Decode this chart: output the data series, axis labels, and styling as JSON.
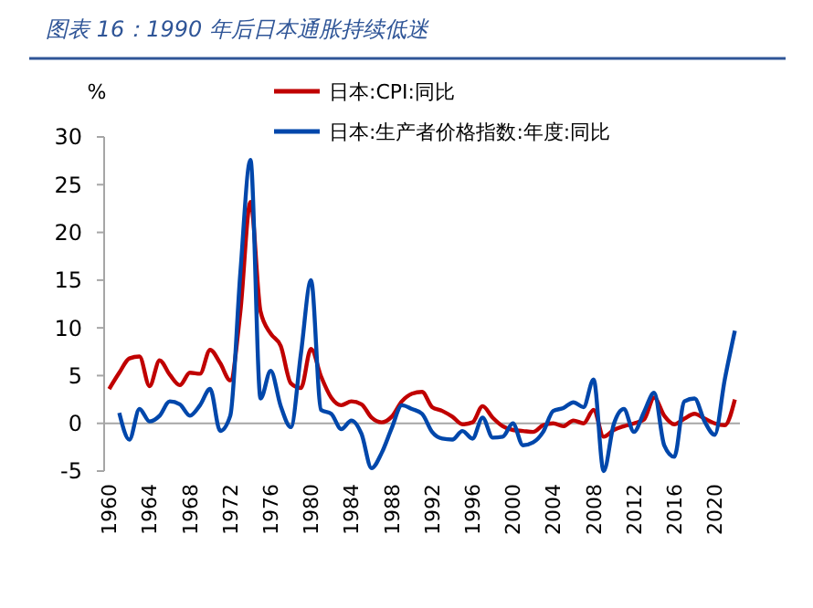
{
  "chart_data": {
    "type": "line",
    "title": "图表 16：1990 年后日本通胀持续低迷",
    "ylabel": "%",
    "x": [
      1960,
      1961,
      1962,
      1963,
      1964,
      1965,
      1966,
      1967,
      1968,
      1969,
      1970,
      1971,
      1972,
      1973,
      1974,
      1975,
      1976,
      1977,
      1978,
      1979,
      1980,
      1981,
      1982,
      1983,
      1984,
      1985,
      1986,
      1987,
      1988,
      1989,
      1990,
      1991,
      1992,
      1993,
      1994,
      1995,
      1996,
      1997,
      1998,
      1999,
      2000,
      2001,
      2002,
      2003,
      2004,
      2005,
      2006,
      2007,
      2008,
      2009,
      2010,
      2011,
      2012,
      2013,
      2014,
      2015,
      2016,
      2017,
      2018,
      2019,
      2020,
      2021,
      2022
    ],
    "series": [
      {
        "name": "日本:CPI:同比",
        "color": "#c00000",
        "values": [
          3.6,
          5.3,
          6.8,
          7.0,
          3.9,
          6.6,
          5.1,
          4.0,
          5.3,
          5.2,
          7.7,
          6.3,
          4.5,
          11.7,
          23.2,
          11.7,
          9.4,
          8.1,
          4.2,
          3.7,
          7.8,
          4.9,
          2.7,
          1.9,
          2.3,
          2.0,
          0.6,
          0.1,
          0.7,
          2.3,
          3.1,
          3.3,
          1.7,
          1.3,
          0.7,
          -0.1,
          0.1,
          1.8,
          0.6,
          -0.3,
          -0.7,
          -0.8,
          -0.9,
          -0.2,
          0.0,
          -0.3,
          0.3,
          0.0,
          1.4,
          -1.4,
          -0.7,
          -0.3,
          0.0,
          0.4,
          2.7,
          0.8,
          -0.1,
          0.5,
          1.0,
          0.5,
          0.0,
          -0.2,
          2.5
        ]
      },
      {
        "name": "日本:生产者价格指数:年度:同比",
        "color": "#0047ab",
        "values": [
          null,
          1.1,
          -1.7,
          1.5,
          0.2,
          0.8,
          2.3,
          2.0,
          0.8,
          1.9,
          3.6,
          -0.8,
          0.8,
          15.8,
          27.6,
          2.6,
          5.5,
          1.8,
          -0.4,
          7.3,
          15.0,
          1.4,
          1.0,
          -0.6,
          0.3,
          -1.1,
          -4.7,
          -3.1,
          -0.5,
          1.9,
          1.5,
          1.0,
          -0.9,
          -1.6,
          -1.7,
          -0.8,
          -1.6,
          0.6,
          -1.5,
          -1.4,
          0.0,
          -2.3,
          -2.0,
          -0.9,
          1.3,
          1.6,
          2.2,
          1.7,
          4.6,
          -5.0,
          -0.1,
          1.5,
          -0.9,
          1.2,
          3.2,
          -2.3,
          -3.5,
          2.3,
          2.6,
          0.2,
          -1.2,
          4.6,
          9.7
        ]
      }
    ],
    "xlim": [
      1959.5,
      2022.5
    ],
    "xticks": [
      1960,
      1964,
      1968,
      1972,
      1976,
      1980,
      1984,
      1988,
      1992,
      1996,
      2000,
      2004,
      2008,
      2012,
      2016,
      2020
    ],
    "ylim": [
      -5,
      30
    ],
    "yticks": [
      -5,
      0,
      5,
      10,
      15,
      20,
      25,
      30
    ],
    "ref_lines": [
      {
        "axis": "y",
        "value": 0,
        "color": "#a6a6a6"
      }
    ],
    "legend": "top",
    "line_style": "solid",
    "marker": "none"
  }
}
